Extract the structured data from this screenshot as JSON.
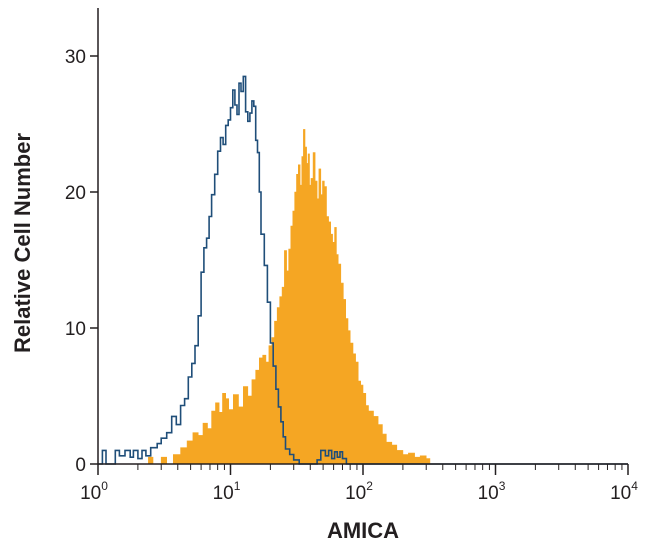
{
  "chart_data": {
    "type": "histogram",
    "xlabel": "AMICA",
    "ylabel": "Relative Cell Number",
    "x_scale": "log",
    "xlim": [
      1,
      10000
    ],
    "ylim": [
      0,
      35
    ],
    "x_ticks": [
      {
        "base": "10",
        "exp": "0",
        "value": 1
      },
      {
        "base": "10",
        "exp": "1",
        "value": 10
      },
      {
        "base": "10",
        "exp": "2",
        "value": 100
      },
      {
        "base": "10",
        "exp": "3",
        "value": 1000
      },
      {
        "base": "10",
        "exp": "4",
        "value": 10000
      }
    ],
    "y_ticks": [
      {
        "label": "0",
        "value": 0
      },
      {
        "label": "10",
        "value": 10
      },
      {
        "label": "20",
        "value": 20
      },
      {
        "label": "30",
        "value": 30
      }
    ],
    "grid": false,
    "series": [
      {
        "style": "outline",
        "color": "#1f4e79",
        "points": [
          [
            1.0,
            0
          ],
          [
            1.08,
            1
          ],
          [
            1.15,
            0
          ],
          [
            1.35,
            1
          ],
          [
            1.45,
            0.6
          ],
          [
            1.6,
            1
          ],
          [
            1.75,
            0.5
          ],
          [
            1.85,
            1
          ],
          [
            2.0,
            0.4
          ],
          [
            2.15,
            1
          ],
          [
            2.3,
            0.6
          ],
          [
            2.5,
            1.2
          ],
          [
            2.8,
            1.5
          ],
          [
            3.0,
            1.9
          ],
          [
            3.3,
            2.3
          ],
          [
            3.6,
            3.5
          ],
          [
            3.9,
            2.9
          ],
          [
            4.2,
            4.3
          ],
          [
            4.5,
            4.8
          ],
          [
            4.8,
            6.4
          ],
          [
            5.1,
            7.4
          ],
          [
            5.4,
            8.7
          ],
          [
            5.7,
            10.9
          ],
          [
            6.0,
            14.1
          ],
          [
            6.3,
            15.9
          ],
          [
            6.6,
            16.6
          ],
          [
            6.9,
            18.2
          ],
          [
            7.2,
            19.8
          ],
          [
            7.6,
            21.3
          ],
          [
            8.0,
            23.0
          ],
          [
            8.4,
            24.0
          ],
          [
            8.8,
            23.5
          ],
          [
            9.2,
            24.9
          ],
          [
            9.6,
            25.3
          ],
          [
            10.0,
            26.2
          ],
          [
            10.4,
            27.5
          ],
          [
            10.8,
            26.4
          ],
          [
            11.2,
            25.7
          ],
          [
            11.6,
            28.0
          ],
          [
            12.0,
            27.4
          ],
          [
            12.5,
            28.5
          ],
          [
            13.0,
            25.9
          ],
          [
            13.5,
            25.2
          ],
          [
            14.0,
            25.8
          ],
          [
            14.5,
            26.7
          ],
          [
            15.0,
            26.3
          ],
          [
            15.5,
            23.8
          ],
          [
            16.0,
            22.9
          ],
          [
            16.5,
            20.0
          ],
          [
            17.0,
            16.9
          ],
          [
            18.0,
            14.6
          ],
          [
            19.0,
            11.9
          ],
          [
            20.0,
            8.9
          ],
          [
            21.0,
            7.2
          ],
          [
            22.0,
            5.5
          ],
          [
            23.0,
            4.2
          ],
          [
            24.0,
            3.1
          ],
          [
            25.0,
            2.0
          ],
          [
            26.0,
            1.1
          ],
          [
            28.0,
            0.7
          ],
          [
            30.0,
            0.3
          ],
          [
            33.0,
            0
          ],
          [
            45.0,
            0.3
          ],
          [
            48.0,
            1
          ],
          [
            52.0,
            0.6
          ],
          [
            55.0,
            1
          ],
          [
            58.0,
            0.4
          ],
          [
            61.0,
            0.9
          ],
          [
            64.0,
            0.5
          ],
          [
            67.0,
            0.9
          ],
          [
            70.0,
            0.4
          ],
          [
            75.0,
            0
          ],
          [
            10000,
            0
          ]
        ]
      },
      {
        "style": "filled",
        "color": "#f5a623",
        "points": [
          [
            2.2,
            0
          ],
          [
            2.4,
            0.5
          ],
          [
            2.6,
            0
          ],
          [
            3.0,
            0.5
          ],
          [
            3.3,
            0
          ],
          [
            3.7,
            0.7
          ],
          [
            4.2,
            1.2
          ],
          [
            4.7,
            1.7
          ],
          [
            5.2,
            2.3
          ],
          [
            5.7,
            2.1
          ],
          [
            6.2,
            3.0
          ],
          [
            6.7,
            2.6
          ],
          [
            7.2,
            3.9
          ],
          [
            7.7,
            4.5
          ],
          [
            8.2,
            3.8
          ],
          [
            8.7,
            5.2
          ],
          [
            9.2,
            4.8
          ],
          [
            9.7,
            4.0
          ],
          [
            10.5,
            5.1
          ],
          [
            11.5,
            4.2
          ],
          [
            12.5,
            5.7
          ],
          [
            13.5,
            5.0
          ],
          [
            14.5,
            6.2
          ],
          [
            15.5,
            6.9
          ],
          [
            16.5,
            7.8
          ],
          [
            17.5,
            8.0
          ],
          [
            18.5,
            7.5
          ],
          [
            19.5,
            8.7
          ],
          [
            20.5,
            9.3
          ],
          [
            21.5,
            10.5
          ],
          [
            22.5,
            11.5
          ],
          [
            23.5,
            12.3
          ],
          [
            24.5,
            13.0
          ],
          [
            25.5,
            15.7
          ],
          [
            26.5,
            14.2
          ],
          [
            27.5,
            15.8
          ],
          [
            28.5,
            17.5
          ],
          [
            29.5,
            18.6
          ],
          [
            30.5,
            20.0
          ],
          [
            31.5,
            21.3
          ],
          [
            32.5,
            22.0
          ],
          [
            33.5,
            20.5
          ],
          [
            34.5,
            22.6
          ],
          [
            35.5,
            24.6
          ],
          [
            36.5,
            23.3
          ],
          [
            37.5,
            22.1
          ],
          [
            38.5,
            22.8
          ],
          [
            39.5,
            20.5
          ],
          [
            40.5,
            21.0
          ],
          [
            42.0,
            22.9
          ],
          [
            43.5,
            20.8
          ],
          [
            45.0,
            19.5
          ],
          [
            46.5,
            21.7
          ],
          [
            48.0,
            19.8
          ],
          [
            49.5,
            20.8
          ],
          [
            51.0,
            20.4
          ],
          [
            53.0,
            18.2
          ],
          [
            55.0,
            17.8
          ],
          [
            57.0,
            16.9
          ],
          [
            59.0,
            16.3
          ],
          [
            61.0,
            17.4
          ],
          [
            63.0,
            15.4
          ],
          [
            65.0,
            14.7
          ],
          [
            68.0,
            13.3
          ],
          [
            71.0,
            12.1
          ],
          [
            74.0,
            10.7
          ],
          [
            77.0,
            9.8
          ],
          [
            80.0,
            8.9
          ],
          [
            84.0,
            8.1
          ],
          [
            88.0,
            7.5
          ],
          [
            92.0,
            6.1
          ],
          [
            96.0,
            5.8
          ],
          [
            100.0,
            5.2
          ],
          [
            105.0,
            4.3
          ],
          [
            110.0,
            3.9
          ],
          [
            120.0,
            3.5
          ],
          [
            130.0,
            2.9
          ],
          [
            140.0,
            2.2
          ],
          [
            150.0,
            1.6
          ],
          [
            165.0,
            1.4
          ],
          [
            180.0,
            1.0
          ],
          [
            200.0,
            0.7
          ],
          [
            220.0,
            0.8
          ],
          [
            245.0,
            0.5
          ],
          [
            270.0,
            0.6
          ],
          [
            300.0,
            0.4
          ],
          [
            320.0,
            0
          ]
        ]
      }
    ]
  }
}
